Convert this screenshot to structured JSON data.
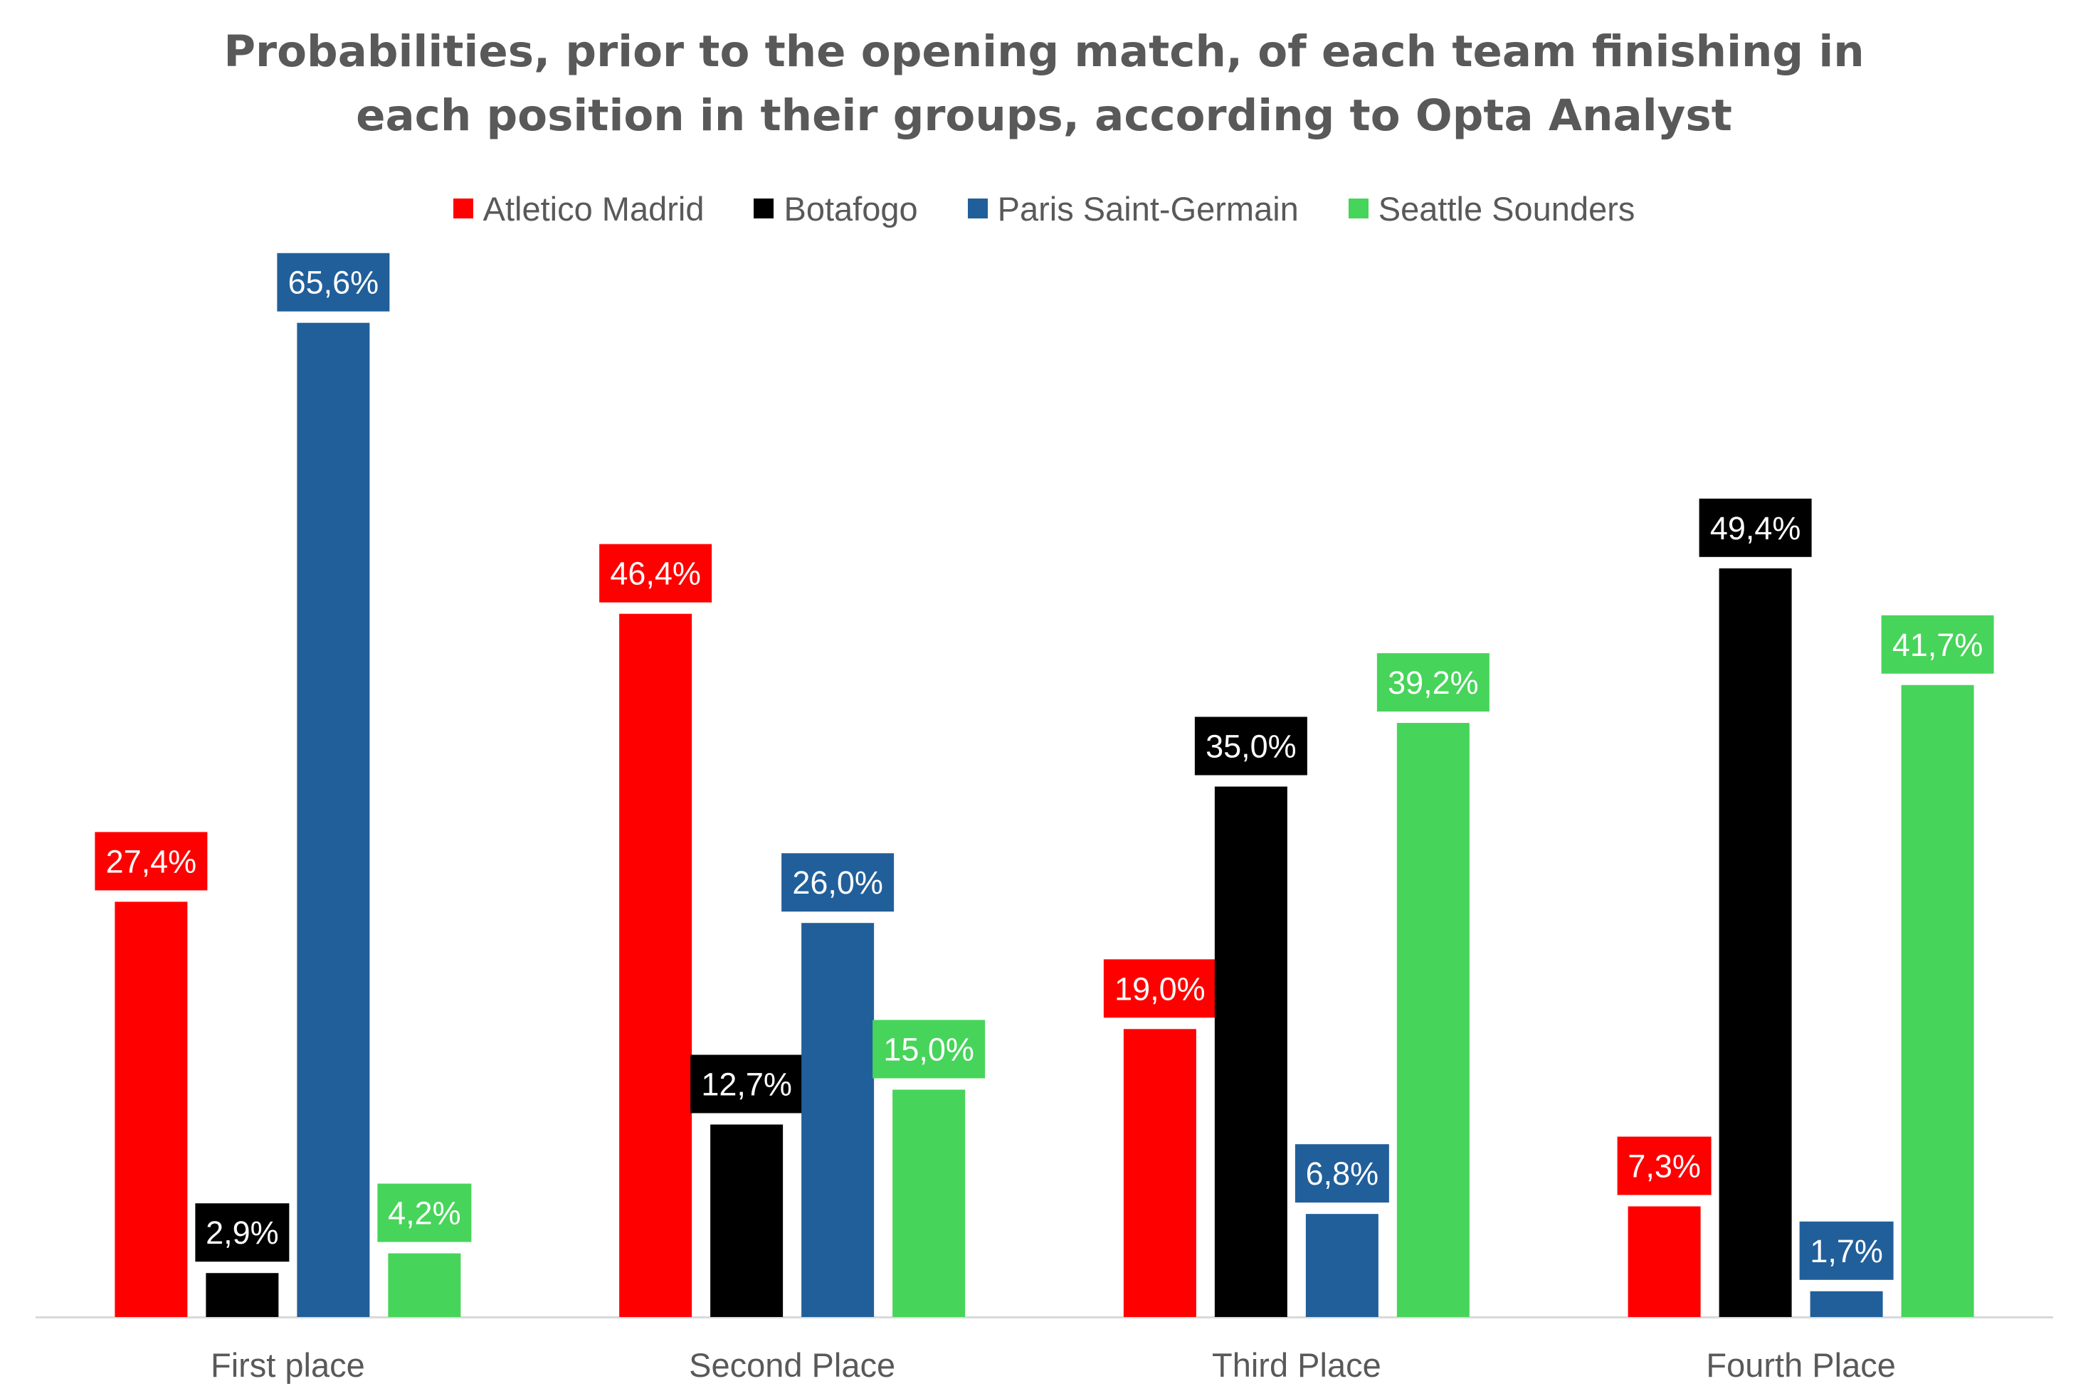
{
  "chart_data": {
    "type": "bar",
    "title_lines": [
      "Probabilities, prior to the opening match, of each team finishing in",
      "each position in their groups, according to Opta Analyst"
    ],
    "categories": [
      "First place",
      "Second Place",
      "Third Place",
      "Fourth Place"
    ],
    "series": [
      {
        "name": "Atletico Madrid",
        "values": [
          27.4,
          46.4,
          19.0,
          7.3
        ],
        "labels": [
          "27,4%",
          "46,4%",
          "19,0%",
          "7,3%"
        ],
        "color": "#ff0000"
      },
      {
        "name": "Botafogo",
        "values": [
          2.9,
          12.7,
          35.0,
          49.4
        ],
        "labels": [
          "2,9%",
          "12,7%",
          "35,0%",
          "49,4%"
        ],
        "color": "#000000"
      },
      {
        "name": "Paris Saint-Germain",
        "values": [
          65.6,
          26.0,
          6.8,
          1.7
        ],
        "labels": [
          "65,6%",
          "26,0%",
          "6,8%",
          "1,7%"
        ],
        "color": "#215f9a"
      },
      {
        "name": "Seattle Sounders",
        "values": [
          4.2,
          15.0,
          39.2,
          41.7
        ],
        "labels": [
          "4,2%",
          "15,0%",
          "39,2%",
          "41,7%"
        ],
        "color": "#47d45a"
      }
    ],
    "xlabel": "",
    "ylabel": "",
    "ylim": [
      0,
      70
    ],
    "grid": false,
    "legend_position": "top",
    "data_labels": true,
    "colors": {
      "title_text": "#595959",
      "axis_text": "#595959",
      "axis_line": "#d9d9d9",
      "label_text": "#ffffff"
    }
  }
}
